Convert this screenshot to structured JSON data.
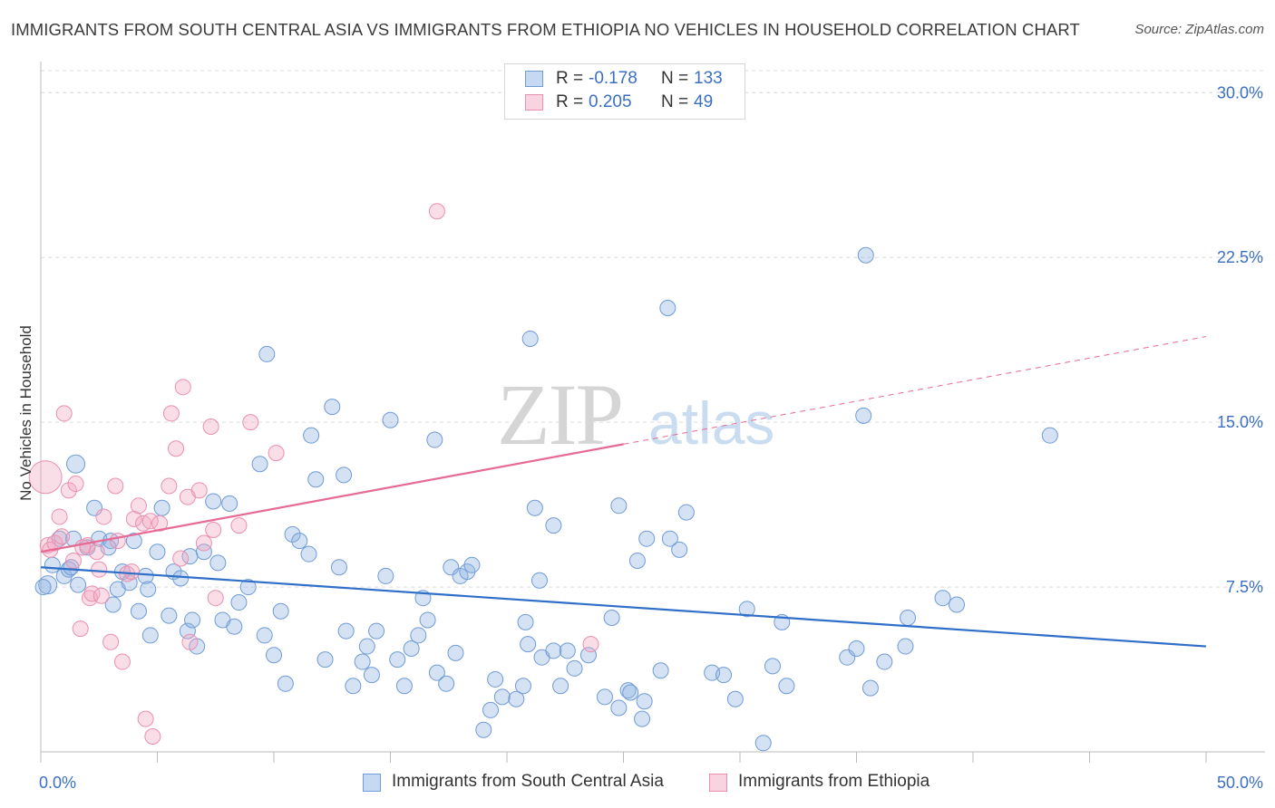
{
  "header": {
    "title": "IMMIGRANTS FROM SOUTH CENTRAL ASIA VS IMMIGRANTS FROM ETHIOPIA NO VEHICLES IN HOUSEHOLD CORRELATION CHART",
    "source": "Source: ZipAtlas.com"
  },
  "watermark": {
    "zip": "ZIP",
    "atlas": "atlas"
  },
  "legend": {
    "rows": [
      {
        "r_label": "R =",
        "r_value": "-0.178",
        "n_label": "N =",
        "n_value": "133",
        "color": "#8fb4e3"
      },
      {
        "r_label": "R =",
        "r_value": "0.205",
        "n_label": "N =",
        "n_value": "49",
        "color": "#f2a7bf"
      }
    ]
  },
  "bottom_legend": [
    {
      "label": "Immigrants from South Central Asia",
      "color": "#8fb4e3"
    },
    {
      "label": "Immigrants from Ethiopia",
      "color": "#f2a7bf"
    }
  ],
  "chart_data": {
    "type": "scatter",
    "title": "IMMIGRANTS FROM SOUTH CENTRAL ASIA VS IMMIGRANTS FROM ETHIOPIA NO VEHICLES IN HOUSEHOLD CORRELATION CHART",
    "xlabel": "",
    "ylabel": "No Vehicles in Household",
    "xlim": [
      0,
      50
    ],
    "ylim": [
      0,
      31
    ],
    "x_tick_labels": [
      "0.0%",
      "50.0%"
    ],
    "y_ticks": [
      7.5,
      15.0,
      22.5,
      30.0
    ],
    "y_tick_labels": [
      "7.5%",
      "15.0%",
      "22.5%",
      "30.0%"
    ],
    "grid": true,
    "legend_position": "top-center",
    "series": [
      {
        "name": "Immigrants from South Central Asia",
        "color": "#8fb4e3",
        "trend_color": "#2f6fc8",
        "trend": {
          "x": [
            0,
            50
          ],
          "y": [
            8.4,
            4.8
          ]
        },
        "points": [
          [
            0.3,
            7.6
          ],
          [
            0.5,
            8.5
          ],
          [
            0.8,
            9.7
          ],
          [
            1.0,
            8.0
          ],
          [
            1.2,
            8.3
          ],
          [
            1.3,
            8.4
          ],
          [
            1.4,
            9.7
          ],
          [
            1.5,
            13.1
          ],
          [
            1.6,
            7.6
          ],
          [
            2.0,
            9.3
          ],
          [
            2.3,
            11.1
          ],
          [
            2.5,
            9.7
          ],
          [
            3.0,
            9.6
          ],
          [
            3.1,
            6.7
          ],
          [
            3.3,
            7.4
          ],
          [
            3.5,
            8.2
          ],
          [
            3.8,
            7.7
          ],
          [
            4.0,
            9.6
          ],
          [
            4.2,
            6.4
          ],
          [
            4.5,
            8.0
          ],
          [
            4.6,
            7.4
          ],
          [
            4.7,
            5.3
          ],
          [
            5.0,
            9.1
          ],
          [
            5.2,
            11.1
          ],
          [
            5.5,
            6.2
          ],
          [
            5.7,
            8.2
          ],
          [
            6.0,
            7.9
          ],
          [
            6.3,
            5.5
          ],
          [
            6.5,
            6.0
          ],
          [
            6.7,
            4.8
          ],
          [
            7.0,
            9.1
          ],
          [
            7.4,
            11.4
          ],
          [
            7.6,
            8.6
          ],
          [
            7.8,
            6.0
          ],
          [
            8.1,
            11.3
          ],
          [
            8.3,
            5.7
          ],
          [
            8.5,
            6.8
          ],
          [
            8.9,
            7.5
          ],
          [
            9.4,
            13.1
          ],
          [
            9.6,
            5.3
          ],
          [
            9.7,
            18.1
          ],
          [
            10.0,
            4.4
          ],
          [
            10.3,
            6.4
          ],
          [
            10.5,
            3.1
          ],
          [
            10.8,
            9.9
          ],
          [
            11.1,
            9.6
          ],
          [
            11.5,
            9.0
          ],
          [
            11.6,
            14.4
          ],
          [
            11.8,
            12.4
          ],
          [
            12.2,
            4.2
          ],
          [
            12.5,
            15.7
          ],
          [
            12.8,
            8.4
          ],
          [
            13.0,
            12.6
          ],
          [
            13.1,
            5.5
          ],
          [
            13.4,
            3.0
          ],
          [
            13.8,
            4.1
          ],
          [
            14.0,
            4.8
          ],
          [
            14.2,
            3.5
          ],
          [
            14.4,
            5.5
          ],
          [
            14.8,
            8.0
          ],
          [
            15.0,
            15.1
          ],
          [
            15.3,
            4.2
          ],
          [
            15.6,
            3.0
          ],
          [
            15.9,
            4.7
          ],
          [
            16.2,
            5.3
          ],
          [
            16.4,
            7.0
          ],
          [
            16.6,
            6.0
          ],
          [
            16.9,
            14.2
          ],
          [
            17.0,
            3.6
          ],
          [
            17.4,
            3.1
          ],
          [
            17.6,
            8.4
          ],
          [
            17.8,
            4.5
          ],
          [
            18.0,
            8.0
          ],
          [
            18.3,
            8.2
          ],
          [
            18.5,
            8.5
          ],
          [
            19.0,
            1.0
          ],
          [
            19.3,
            1.9
          ],
          [
            19.5,
            3.3
          ],
          [
            19.8,
            2.5
          ],
          [
            20.4,
            2.4
          ],
          [
            20.7,
            3.0
          ],
          [
            20.8,
            5.9
          ],
          [
            20.9,
            4.9
          ],
          [
            21.0,
            18.8
          ],
          [
            21.2,
            11.1
          ],
          [
            21.4,
            7.8
          ],
          [
            21.5,
            4.3
          ],
          [
            22.0,
            4.6
          ],
          [
            22.0,
            10.3
          ],
          [
            22.3,
            3.0
          ],
          [
            22.6,
            4.6
          ],
          [
            22.9,
            3.8
          ],
          [
            23.5,
            4.4
          ],
          [
            24.2,
            2.5
          ],
          [
            24.5,
            6.1
          ],
          [
            24.8,
            2.0
          ],
          [
            24.8,
            11.2
          ],
          [
            25.2,
            2.8
          ],
          [
            25.3,
            2.7
          ],
          [
            25.6,
            8.7
          ],
          [
            25.8,
            1.5
          ],
          [
            25.9,
            2.3
          ],
          [
            26.0,
            9.7
          ],
          [
            26.6,
            3.7
          ],
          [
            26.9,
            20.2
          ],
          [
            27.0,
            9.7
          ],
          [
            27.4,
            9.2
          ],
          [
            27.7,
            10.9
          ],
          [
            28.8,
            3.6
          ],
          [
            29.3,
            3.5
          ],
          [
            29.8,
            2.4
          ],
          [
            30.3,
            6.5
          ],
          [
            31.0,
            0.4
          ],
          [
            31.4,
            3.9
          ],
          [
            31.8,
            5.9
          ],
          [
            32.0,
            3.0
          ],
          [
            34.6,
            4.3
          ],
          [
            35.0,
            4.7
          ],
          [
            35.3,
            15.3
          ],
          [
            35.4,
            22.6
          ],
          [
            35.6,
            2.9
          ],
          [
            36.2,
            4.1
          ],
          [
            37.1,
            4.8
          ],
          [
            37.2,
            6.1
          ],
          [
            38.7,
            7.0
          ],
          [
            39.3,
            6.7
          ],
          [
            43.3,
            14.4
          ],
          [
            0.1,
            7.5
          ],
          [
            2.9,
            9.3
          ],
          [
            6.4,
            8.9
          ]
        ]
      },
      {
        "name": "Immigrants from Ethiopia",
        "color": "#f2a7bf",
        "trend_color": "#e66a94",
        "trend": {
          "x": [
            0,
            25
          ],
          "y": [
            9.1,
            14.0
          ]
        },
        "trend_extension": {
          "x": [
            25,
            50
          ],
          "y": [
            14.0,
            18.9
          ]
        },
        "points": [
          [
            0.2,
            12.5
          ],
          [
            0.3,
            9.4
          ],
          [
            0.4,
            9.2
          ],
          [
            0.6,
            9.5
          ],
          [
            0.8,
            10.7
          ],
          [
            0.9,
            9.8
          ],
          [
            1.0,
            15.4
          ],
          [
            1.2,
            11.9
          ],
          [
            1.4,
            8.7
          ],
          [
            1.5,
            12.2
          ],
          [
            1.7,
            5.6
          ],
          [
            2.0,
            9.4
          ],
          [
            2.1,
            7.0
          ],
          [
            2.2,
            7.2
          ],
          [
            2.4,
            9.1
          ],
          [
            2.5,
            8.3
          ],
          [
            2.7,
            10.7
          ],
          [
            3.0,
            5.0
          ],
          [
            3.2,
            12.1
          ],
          [
            3.3,
            9.6
          ],
          [
            3.5,
            4.1
          ],
          [
            3.7,
            8.1
          ],
          [
            4.0,
            10.6
          ],
          [
            4.2,
            11.2
          ],
          [
            4.4,
            10.4
          ],
          [
            4.5,
            1.5
          ],
          [
            4.7,
            10.5
          ],
          [
            4.8,
            0.7
          ],
          [
            5.5,
            12.1
          ],
          [
            5.6,
            15.4
          ],
          [
            5.8,
            13.8
          ],
          [
            6.0,
            8.8
          ],
          [
            6.1,
            16.6
          ],
          [
            6.3,
            11.6
          ],
          [
            6.4,
            5.0
          ],
          [
            6.8,
            11.9
          ],
          [
            7.0,
            9.5
          ],
          [
            7.3,
            14.8
          ],
          [
            7.4,
            10.1
          ],
          [
            7.5,
            7.0
          ],
          [
            8.5,
            10.3
          ],
          [
            9.0,
            15.0
          ],
          [
            10.1,
            13.6
          ],
          [
            17.0,
            24.6
          ],
          [
            23.6,
            4.9
          ],
          [
            3.9,
            8.2
          ],
          [
            1.8,
            9.3
          ],
          [
            2.6,
            7.1
          ],
          [
            5.1,
            10.4
          ]
        ]
      }
    ]
  }
}
